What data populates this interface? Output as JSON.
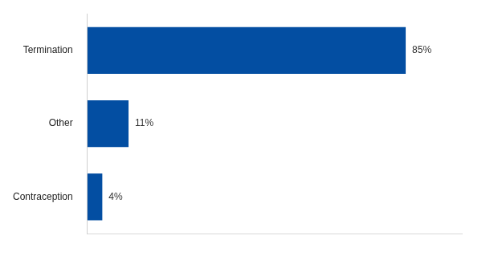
{
  "chart_data": {
    "type": "bar",
    "orientation": "horizontal",
    "categories": [
      "Termination",
      "Other",
      "Contraception"
    ],
    "values": [
      85,
      11,
      4
    ],
    "value_labels": [
      "85%",
      "11%",
      "4%"
    ],
    "data_labels": true,
    "color": "#034ea2",
    "xlim": [
      0,
      100
    ],
    "grid": false,
    "tick_labels": "y"
  }
}
